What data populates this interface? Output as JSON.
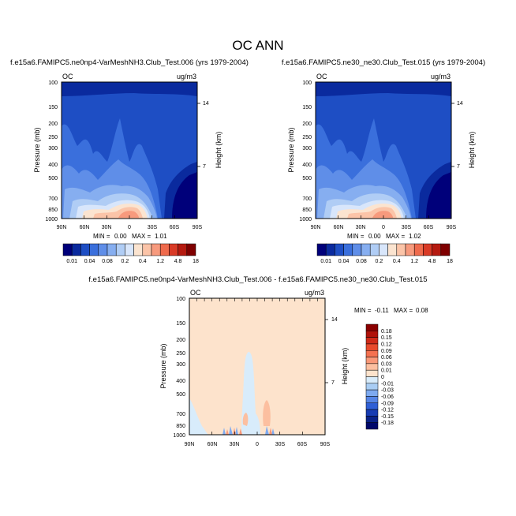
{
  "figure": {
    "title": "OC ANN",
    "colors": {
      "background": "#ffffff",
      "frame": "#000000"
    }
  },
  "chart_data": [
    {
      "type": "heatmap",
      "id": "panel-1",
      "title": "f.e15a6.FAMIPC5.ne0np4-VarMeshNH3.Club_Test.006 (yrs 1979-2004)",
      "left_label": "OC",
      "right_label": "ug/m3",
      "xlabel": "",
      "ylabel": "Pressure (mb)",
      "y2label": "Height (km)",
      "x_ticks": [
        "90N",
        "60N",
        "30N",
        "0",
        "30S",
        "60S",
        "90S"
      ],
      "y_ticks": [
        "100",
        "150",
        "200",
        "250",
        "300",
        "400",
        "500",
        "700",
        "850",
        "1000"
      ],
      "y2_ticks": [
        "14",
        "7"
      ],
      "ylim": [
        1000,
        100
      ],
      "stats": {
        "min_label": "MIN =",
        "min": "0.00",
        "max_label": "MAX =",
        "max": "1.01"
      },
      "colorbar": {
        "labels": [
          "0.01",
          "0.04",
          "0.08",
          "0.2",
          "0.4",
          "1.2",
          "4.8",
          "18"
        ],
        "colors": [
          "#00007a",
          "#0a2a9e",
          "#1e4ec4",
          "#3a6fdc",
          "#5f8ee8",
          "#86aef0",
          "#b0cdf5",
          "#d8e6fb",
          "#fbe4d0",
          "#fbc4a8",
          "#f79a7d",
          "#ef6a4c",
          "#d93a26",
          "#b51a10",
          "#7f0000"
        ]
      }
    },
    {
      "type": "heatmap",
      "id": "panel-2",
      "title": "f.e15a6.FAMIPC5.ne30_ne30.Club_Test.015 (yrs 1979-2004)",
      "left_label": "OC",
      "right_label": "ug/m3",
      "xlabel": "",
      "ylabel": "Pressure (mb)",
      "y2label": "Height (km)",
      "x_ticks": [
        "90N",
        "60N",
        "30N",
        "0",
        "30S",
        "60S",
        "90S"
      ],
      "y_ticks": [
        "100",
        "150",
        "200",
        "250",
        "300",
        "400",
        "500",
        "700",
        "850",
        "1000"
      ],
      "y2_ticks": [
        "14",
        "7"
      ],
      "ylim": [
        1000,
        100
      ],
      "stats": {
        "min_label": "MIN =",
        "min": "0.00",
        "max_label": "MAX =",
        "max": "1.02"
      },
      "colorbar": {
        "labels": [
          "0.01",
          "0.04",
          "0.08",
          "0.2",
          "0.4",
          "1.2",
          "4.8",
          "18"
        ],
        "colors": [
          "#00007a",
          "#0a2a9e",
          "#1e4ec4",
          "#3a6fdc",
          "#5f8ee8",
          "#86aef0",
          "#b0cdf5",
          "#d8e6fb",
          "#fbe4d0",
          "#fbc4a8",
          "#f79a7d",
          "#ef6a4c",
          "#d93a26",
          "#b51a10",
          "#7f0000"
        ]
      }
    },
    {
      "type": "heatmap",
      "id": "panel-diff",
      "title": "f.e15a6.FAMIPC5.ne0np4-VarMeshNH3.Club_Test.006 - f.e15a6.FAMIPC5.ne30_ne30.Club_Test.015",
      "left_label": "OC",
      "right_label": "ug/m3",
      "xlabel": "",
      "ylabel": "Pressure (mb)",
      "y2label": "Height (km)",
      "x_ticks": [
        "90N",
        "60N",
        "30N",
        "0",
        "30S",
        "60S",
        "90S"
      ],
      "y_ticks": [
        "100",
        "150",
        "200",
        "250",
        "300",
        "400",
        "500",
        "700",
        "850",
        "1000"
      ],
      "y2_ticks": [
        "14",
        "7"
      ],
      "ylim": [
        1000,
        100
      ],
      "stats": {
        "min_label": "MIN =",
        "min": "-0.11",
        "max_label": "MAX =",
        "max": "0.08"
      },
      "colorbar": {
        "labels": [
          "0.18",
          "0.15",
          "0.12",
          "0.09",
          "0.06",
          "0.03",
          "0.01",
          "0",
          "-0.01",
          "-0.03",
          "-0.06",
          "-0.09",
          "-0.12",
          "-0.15",
          "-0.18"
        ],
        "colors": [
          "#8b0000",
          "#b0120a",
          "#cf2a18",
          "#e84a2c",
          "#f47150",
          "#f99878",
          "#fcbfa0",
          "#fde3cc",
          "#d8ecfb",
          "#a9cdf4",
          "#7eaaf0",
          "#5685e6",
          "#2f5fd6",
          "#173cb3",
          "#0a2288",
          "#00086a"
        ]
      }
    }
  ]
}
